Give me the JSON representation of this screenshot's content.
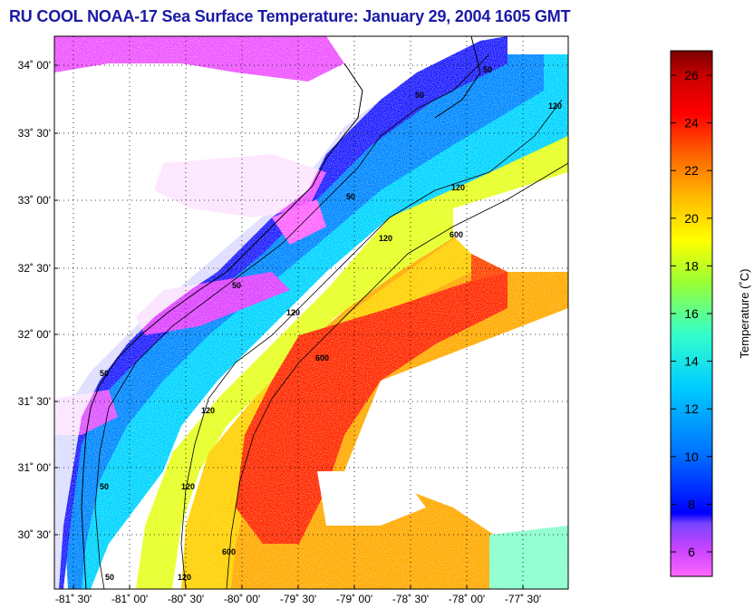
{
  "title": "RU COOL  NOAA-17  Sea Surface Temperature:  January 29, 2004 1605 GMT",
  "map": {
    "lat_ticks": [
      "34˚ 00'",
      "33˚ 30'",
      "33˚ 00'",
      "32˚ 30'",
      "32˚ 00'",
      "31˚ 30'",
      "31˚ 00'",
      "30˚ 30'"
    ],
    "lon_ticks": [
      "-81˚ 30'",
      "-81˚ 00'",
      "-80˚ 30'",
      "-80˚ 00'",
      "-79˚ 30'",
      "-79˚ 00'",
      "-78˚ 30'",
      "-78˚ 00'",
      "-77˚ 30'"
    ],
    "contour_labels": [
      "50",
      "50",
      "50",
      "50",
      "50",
      "50",
      "50",
      "120",
      "120",
      "120",
      "120",
      "120",
      "120",
      "120",
      "600",
      "600",
      "600"
    ]
  },
  "colorbar": {
    "label": "Temperature (˚C)",
    "ticks": [
      "26",
      "24",
      "22",
      "20",
      "18",
      "16",
      "14",
      "12",
      "10",
      "8",
      "6"
    ],
    "stops": [
      "#ff66ff",
      "#cc44ff",
      "#7a44ff",
      "#0000ff",
      "#0077ff",
      "#00ccff",
      "#33ffcc",
      "#99ff33",
      "#ffff00",
      "#ffbb00",
      "#ff6600",
      "#ff0000",
      "#cc0000",
      "#7a0000"
    ]
  }
}
